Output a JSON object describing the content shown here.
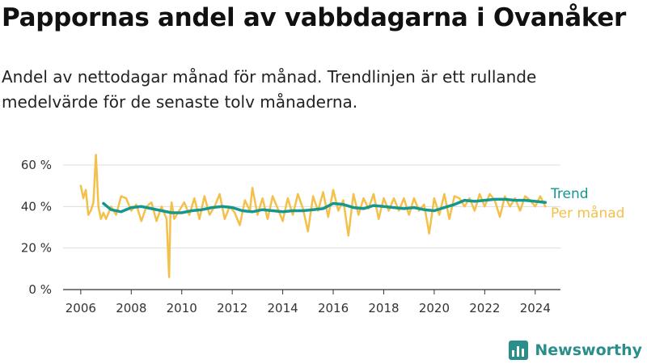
{
  "title": "Pappornas andel av vabbdagarna i Ovanåker",
  "subtitle": "Andel av nettodagar månad för månad. Trendlinjen är ett rullande medelvärde för de senaste tolv månaderna.",
  "brand": {
    "name": "Newsworthy",
    "icon": "newsworthy-logo-icon"
  },
  "colors": {
    "monthly": "#f4c04a",
    "trend": "#14978f",
    "grid": "#dddddd",
    "axis": "#333333"
  },
  "chart_data": {
    "type": "line",
    "title": "Pappornas andel av vabbdagarna i Ovanåker",
    "subtitle": "Andel av nettodagar månad för månad. Trendlinjen är ett rullande medelvärde för de senaste tolv månaderna.",
    "xlabel": "",
    "ylabel": "",
    "xlim": [
      2005.3,
      2025.0
    ],
    "ylim": [
      0,
      60
    ],
    "yticks": [
      0,
      20,
      40,
      60
    ],
    "ytick_labels": [
      "0 %",
      "20 %",
      "40 %",
      "60 %"
    ],
    "xticks": [
      2006,
      2008,
      2010,
      2012,
      2014,
      2016,
      2018,
      2020,
      2022,
      2024
    ],
    "xtick_labels": [
      "2006",
      "2008",
      "2010",
      "2012",
      "2014",
      "2016",
      "2018",
      "2020",
      "2022",
      "2024"
    ],
    "grid": "horizontal",
    "legend": "right, direct labels",
    "series": [
      {
        "name": "Per månad",
        "color": "#f4c04a",
        "x": [
          2006.0,
          2006.1,
          2006.2,
          2006.3,
          2006.4,
          2006.5,
          2006.6,
          2006.7,
          2006.8,
          2006.9,
          2007.0,
          2007.2,
          2007.4,
          2007.6,
          2007.8,
          2008.0,
          2008.2,
          2008.4,
          2008.6,
          2008.8,
          2009.0,
          2009.2,
          2009.4,
          2009.5,
          2009.55,
          2009.6,
          2009.7,
          2009.9,
          2010.1,
          2010.3,
          2010.5,
          2010.7,
          2010.9,
          2011.1,
          2011.3,
          2011.5,
          2011.7,
          2011.9,
          2012.1,
          2012.3,
          2012.5,
          2012.7,
          2012.8,
          2013.0,
          2013.2,
          2013.4,
          2013.6,
          2013.8,
          2014.0,
          2014.2,
          2014.4,
          2014.6,
          2014.8,
          2015.0,
          2015.2,
          2015.4,
          2015.6,
          2015.8,
          2016.0,
          2016.2,
          2016.4,
          2016.6,
          2016.8,
          2017.0,
          2017.2,
          2017.4,
          2017.6,
          2017.8,
          2018.0,
          2018.2,
          2018.4,
          2018.6,
          2018.8,
          2019.0,
          2019.2,
          2019.4,
          2019.6,
          2019.8,
          2020.0,
          2020.2,
          2020.4,
          2020.6,
          2020.8,
          2021.0,
          2021.2,
          2021.4,
          2021.6,
          2021.8,
          2022.0,
          2022.2,
          2022.4,
          2022.6,
          2022.8,
          2023.0,
          2023.2,
          2023.4,
          2023.6,
          2023.8,
          2024.0,
          2024.2,
          2024.4
        ],
        "values": [
          50,
          44,
          48,
          36,
          38,
          42,
          65,
          40,
          34,
          37,
          34,
          40,
          36,
          45,
          44,
          38,
          41,
          33,
          40,
          42,
          33,
          40,
          34,
          6,
          36,
          42,
          34,
          38,
          42,
          36,
          44,
          34,
          45,
          36,
          40,
          46,
          34,
          40,
          37,
          31,
          43,
          38,
          49,
          36,
          44,
          34,
          45,
          39,
          33,
          44,
          36,
          46,
          39,
          28,
          45,
          38,
          47,
          35,
          48,
          38,
          43,
          26,
          46,
          36,
          44,
          39,
          46,
          34,
          44,
          38,
          44,
          38,
          44,
          36,
          44,
          38,
          41,
          27,
          44,
          36,
          46,
          34,
          45,
          44,
          40,
          44,
          38,
          46,
          40,
          46,
          43,
          35,
          45,
          40,
          44,
          38,
          45,
          43,
          40,
          45,
          40
        ]
      },
      {
        "name": "Trend",
        "color": "#14978f",
        "x": [
          2006.9,
          2007.2,
          2007.6,
          2008.0,
          2008.4,
          2008.8,
          2009.2,
          2009.6,
          2010.0,
          2010.4,
          2010.8,
          2011.2,
          2011.6,
          2012.0,
          2012.4,
          2012.8,
          2013.2,
          2013.6,
          2014.0,
          2014.4,
          2014.8,
          2015.2,
          2015.6,
          2016.0,
          2016.4,
          2016.8,
          2017.2,
          2017.6,
          2018.0,
          2018.4,
          2018.8,
          2019.2,
          2019.6,
          2020.0,
          2020.4,
          2020.8,
          2021.2,
          2021.6,
          2022.0,
          2022.4,
          2022.8,
          2023.2,
          2023.6,
          2024.0,
          2024.4
        ],
        "values": [
          41.5,
          38.5,
          37.5,
          39.5,
          40.0,
          39.0,
          38.0,
          37.0,
          37.0,
          38.0,
          38.5,
          39.5,
          40.0,
          39.5,
          38.0,
          37.5,
          38.5,
          38.0,
          37.5,
          38.0,
          38.0,
          38.5,
          39.0,
          41.5,
          41.0,
          39.5,
          39.0,
          40.5,
          40.0,
          39.5,
          39.0,
          39.5,
          38.5,
          38.0,
          39.5,
          41.0,
          43.0,
          42.5,
          43.0,
          43.5,
          43.5,
          43.0,
          43.0,
          42.5,
          42.0
        ]
      }
    ]
  }
}
